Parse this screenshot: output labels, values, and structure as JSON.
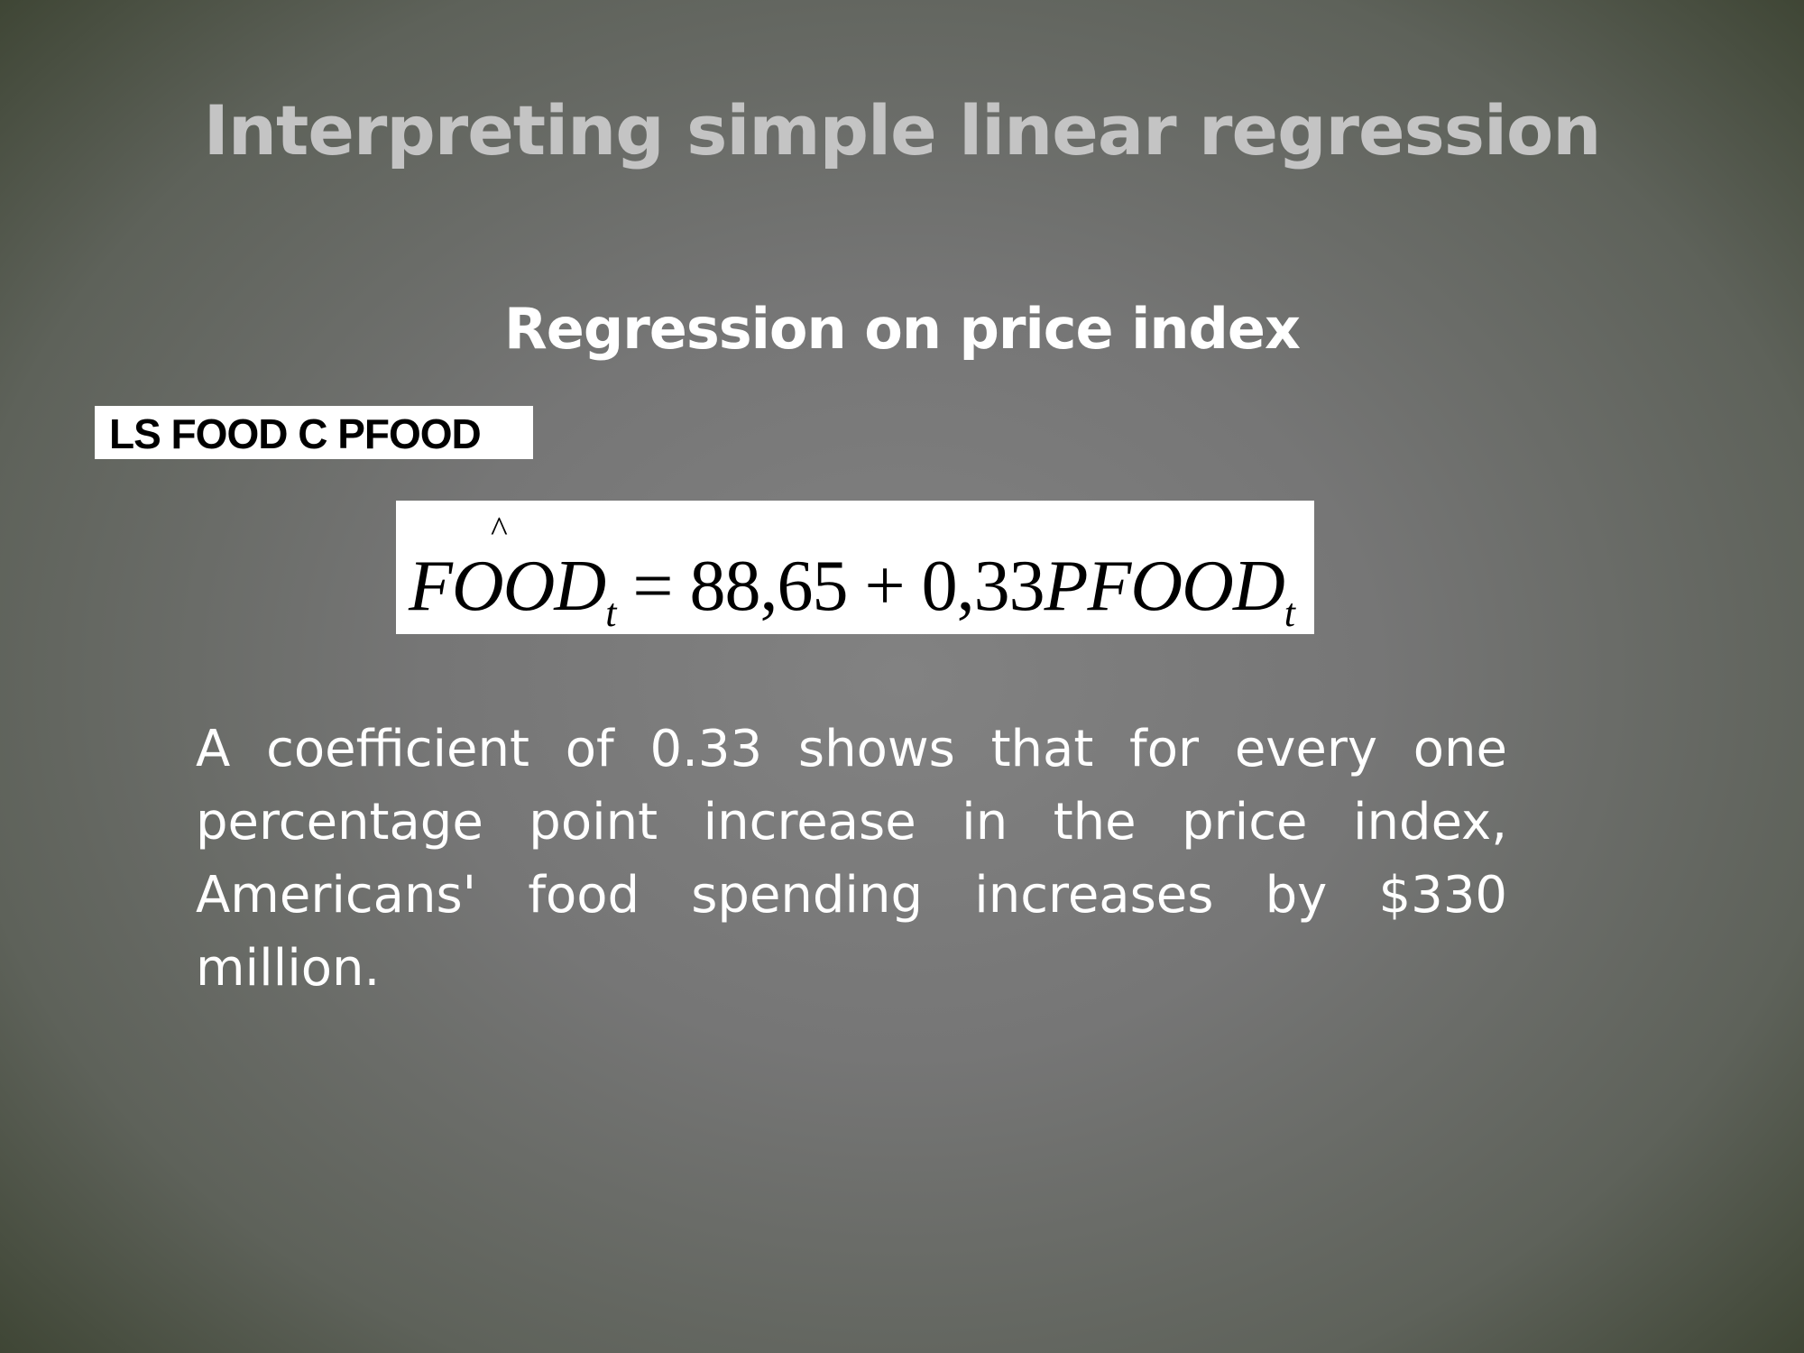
{
  "slide": {
    "title": "Interpreting simple linear regression",
    "subtitle": "Regression on price index",
    "command": "LS FOOD C PFOOD",
    "equation": {
      "hat": "^",
      "lhs_var": "FOOD",
      "lhs_sub": "t",
      "equals": " = ",
      "intercept": "88,65",
      "plus": " + ",
      "coefficient": "0,33",
      "rhs_var": "PFOOD",
      "rhs_sub": "t"
    },
    "body": "A coefficient of 0.33 shows that for every one percentage point increase in the price index, Americans' food spending increases by $330 million."
  }
}
